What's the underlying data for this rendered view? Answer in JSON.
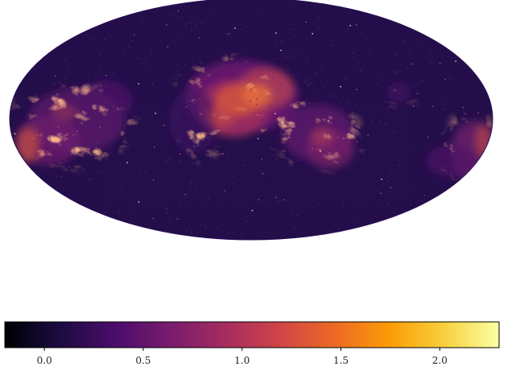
{
  "colorbar": {
    "colormap": "inferno",
    "range": [
      -0.2,
      2.3
    ],
    "ticks": [
      {
        "value": 0.0,
        "label": "0.0"
      },
      {
        "value": 0.5,
        "label": "0.5"
      },
      {
        "value": 1.0,
        "label": "1.0"
      },
      {
        "value": 1.5,
        "label": "1.5"
      },
      {
        "value": 2.0,
        "label": "2.0"
      }
    ],
    "stops": [
      "#000004",
      "#1b0c41",
      "#4a0c6b",
      "#781c6d",
      "#a52c60",
      "#cf4446",
      "#ed6925",
      "#fb9b06",
      "#f7d13d",
      "#fcffa4"
    ]
  },
  "map": {
    "projection": "mollweide",
    "background_level": 0.12,
    "emission_colormap": "inferno"
  }
}
